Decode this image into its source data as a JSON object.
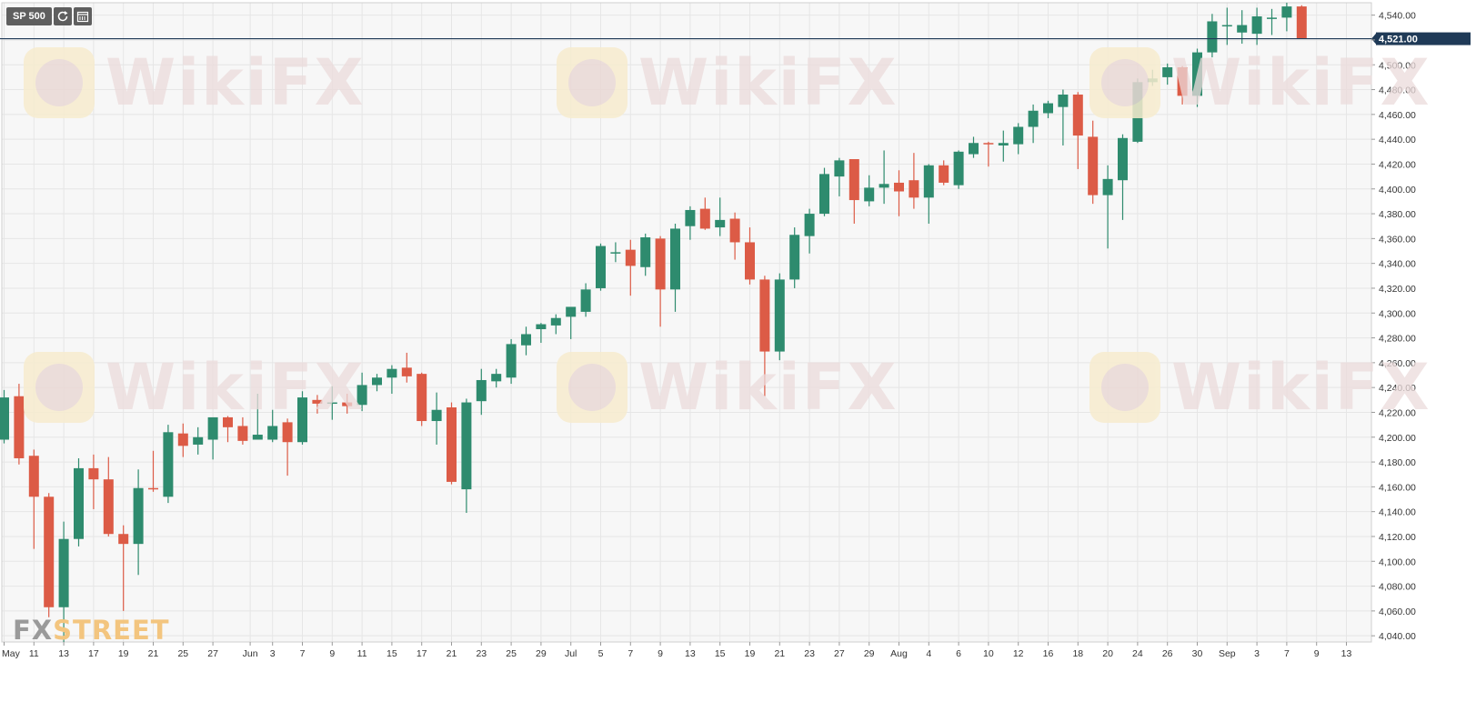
{
  "toolbar": {
    "symbol": "SP 500",
    "icons": [
      "refresh-icon",
      "calendar-icon"
    ]
  },
  "brand": {
    "part1": "FX",
    "part2": "STREET"
  },
  "watermark": "WikiFX",
  "colors": {
    "up": "#2e8b6e",
    "down": "#dc5b46",
    "price_line": "#1f3a57",
    "price_label_bg": "#1f3a57",
    "grid": "#e6e6e6",
    "background": "#f7f7f7"
  },
  "chart_data": {
    "type": "candlestick",
    "current_price_label": "4,521.00",
    "current_price": 4521,
    "ylim": [
      4035,
      4550
    ],
    "y_ticks": [
      4040,
      4060,
      4080,
      4100,
      4120,
      4140,
      4160,
      4180,
      4200,
      4220,
      4240,
      4260,
      4280,
      4300,
      4320,
      4340,
      4360,
      4380,
      4400,
      4420,
      4440,
      4460,
      4480,
      4500,
      4520,
      4540
    ],
    "y_tick_labels": [
      "4,040.00",
      "4,060.00",
      "4,080.00",
      "4,100.00",
      "4,120.00",
      "4,140.00",
      "4,160.00",
      "4,180.00",
      "4,200.00",
      "4,220.00",
      "4,240.00",
      "4,260.00",
      "4,280.00",
      "4,300.00",
      "4,320.00",
      "4,340.00",
      "4,360.00",
      "4,380.00",
      "4,400.00",
      "4,420.00",
      "4,440.00",
      "4,460.00",
      "4,480.00",
      "4,500.00",
      "4,520.00",
      "4,540.00"
    ],
    "x_tick_labels": [
      "May",
      "11",
      "13",
      "17",
      "19",
      "21",
      "25",
      "27",
      "Jun",
      "3",
      "7",
      "9",
      "11",
      "15",
      "17",
      "21",
      "23",
      "25",
      "29",
      "Jul",
      "5",
      "7",
      "9",
      "13",
      "15",
      "19",
      "21",
      "23",
      "27",
      "29",
      "Aug",
      "4",
      "6",
      "10",
      "12",
      "16",
      "18",
      "20",
      "24",
      "26",
      "30",
      "Sep",
      "3",
      "7",
      "9",
      "13"
    ],
    "x_tick_index": [
      0,
      2,
      4,
      6,
      8,
      10,
      12,
      14,
      16.5,
      18,
      20,
      22,
      24,
      26,
      28,
      30,
      32,
      34,
      36,
      38,
      40,
      42,
      44,
      46,
      48,
      50,
      52,
      54,
      56,
      58,
      60,
      62,
      64,
      66,
      68,
      70,
      72,
      74,
      76,
      78,
      80,
      82,
      84,
      86,
      88,
      90
    ],
    "candles": [
      {
        "o": 4198,
        "h": 4238,
        "l": 4195,
        "c": 4232
      },
      {
        "o": 4233,
        "h": 4243,
        "l": 4178,
        "c": 4183
      },
      {
        "o": 4185,
        "h": 4190,
        "l": 4110,
        "c": 4152
      },
      {
        "o": 4152,
        "h": 4155,
        "l": 4055,
        "c": 4063
      },
      {
        "o": 4063,
        "h": 4132,
        "l": 4035,
        "c": 4118
      },
      {
        "o": 4118,
        "h": 4183,
        "l": 4112,
        "c": 4175
      },
      {
        "o": 4175,
        "h": 4186,
        "l": 4142,
        "c": 4166
      },
      {
        "o": 4166,
        "h": 4184,
        "l": 4120,
        "c": 4122
      },
      {
        "o": 4122,
        "h": 4129,
        "l": 4060,
        "c": 4114
      },
      {
        "o": 4114,
        "h": 4174,
        "l": 4089,
        "c": 4159
      },
      {
        "o": 4159,
        "h": 4189,
        "l": 4156,
        "c": 4158
      },
      {
        "o": 4152,
        "h": 4210,
        "l": 4147,
        "c": 4204
      },
      {
        "o": 4203,
        "h": 4211,
        "l": 4184,
        "c": 4193
      },
      {
        "o": 4194,
        "h": 4208,
        "l": 4186,
        "c": 4200
      },
      {
        "o": 4198,
        "h": 4215,
        "l": 4182,
        "c": 4216
      },
      {
        "o": 4216,
        "h": 4217,
        "l": 4196,
        "c": 4208
      },
      {
        "o": 4209,
        "h": 4216,
        "l": 4194,
        "c": 4197
      },
      {
        "o": 4198,
        "h": 4235,
        "l": 4198,
        "c": 4202
      },
      {
        "o": 4198,
        "h": 4222,
        "l": 4196,
        "c": 4209
      },
      {
        "o": 4212,
        "h": 4215,
        "l": 4169,
        "c": 4196
      },
      {
        "o": 4196,
        "h": 4237,
        "l": 4194,
        "c": 4232
      },
      {
        "o": 4230,
        "h": 4234,
        "l": 4219,
        "c": 4227
      },
      {
        "o": 4227,
        "h": 4241,
        "l": 4214,
        "c": 4228
      },
      {
        "o": 4228,
        "h": 4235,
        "l": 4219,
        "c": 4225
      },
      {
        "o": 4226,
        "h": 4252,
        "l": 4221,
        "c": 4242
      },
      {
        "o": 4242,
        "h": 4251,
        "l": 4237,
        "c": 4248
      },
      {
        "o": 4248,
        "h": 4258,
        "l": 4235,
        "c": 4255
      },
      {
        "o": 4256,
        "h": 4268,
        "l": 4244,
        "c": 4249
      },
      {
        "o": 4251,
        "h": 4252,
        "l": 4209,
        "c": 4213
      },
      {
        "o": 4213,
        "h": 4236,
        "l": 4194,
        "c": 4222
      },
      {
        "o": 4224,
        "h": 4228,
        "l": 4162,
        "c": 4164
      },
      {
        "o": 4158,
        "h": 4231,
        "l": 4139,
        "c": 4228
      },
      {
        "o": 4229,
        "h": 4255,
        "l": 4218,
        "c": 4246
      },
      {
        "o": 4245,
        "h": 4255,
        "l": 4240,
        "c": 4251
      },
      {
        "o": 4248,
        "h": 4279,
        "l": 4243,
        "c": 4275
      },
      {
        "o": 4274,
        "h": 4289,
        "l": 4266,
        "c": 4283
      },
      {
        "o": 4287,
        "h": 4292,
        "l": 4276,
        "c": 4291
      },
      {
        "o": 4290,
        "h": 4299,
        "l": 4283,
        "c": 4296
      },
      {
        "o": 4297,
        "h": 4304,
        "l": 4279,
        "c": 4305
      },
      {
        "o": 4301,
        "h": 4324,
        "l": 4297,
        "c": 4319
      },
      {
        "o": 4320,
        "h": 4356,
        "l": 4318,
        "c": 4354
      },
      {
        "o": 4349,
        "h": 4357,
        "l": 4341,
        "c": 4349
      },
      {
        "o": 4351,
        "h": 4359,
        "l": 4314,
        "c": 4338
      },
      {
        "o": 4337,
        "h": 4364,
        "l": 4330,
        "c": 4361
      },
      {
        "o": 4360,
        "h": 4362,
        "l": 4289,
        "c": 4319
      },
      {
        "o": 4319,
        "h": 4372,
        "l": 4301,
        "c": 4368
      },
      {
        "o": 4370,
        "h": 4386,
        "l": 4359,
        "c": 4383
      },
      {
        "o": 4384,
        "h": 4393,
        "l": 4367,
        "c": 4368
      },
      {
        "o": 4369,
        "h": 4393,
        "l": 4362,
        "c": 4375
      },
      {
        "o": 4376,
        "h": 4381,
        "l": 4343,
        "c": 4357
      },
      {
        "o": 4357,
        "h": 4369,
        "l": 4323,
        "c": 4327
      },
      {
        "o": 4327,
        "h": 4330,
        "l": 4233,
        "c": 4269
      },
      {
        "o": 4269,
        "h": 4332,
        "l": 4262,
        "c": 4327
      },
      {
        "o": 4327,
        "h": 4369,
        "l": 4320,
        "c": 4363
      },
      {
        "o": 4362,
        "h": 4384,
        "l": 4348,
        "c": 4380
      },
      {
        "o": 4380,
        "h": 4417,
        "l": 4378,
        "c": 4412
      },
      {
        "o": 4410,
        "h": 4425,
        "l": 4394,
        "c": 4423
      },
      {
        "o": 4424,
        "h": 4424,
        "l": 4372,
        "c": 4391
      },
      {
        "o": 4390,
        "h": 4411,
        "l": 4386,
        "c": 4401
      },
      {
        "o": 4401,
        "h": 4431,
        "l": 4388,
        "c": 4404
      },
      {
        "o": 4405,
        "h": 4415,
        "l": 4378,
        "c": 4398
      },
      {
        "o": 4407,
        "h": 4429,
        "l": 4384,
        "c": 4393
      },
      {
        "o": 4393,
        "h": 4420,
        "l": 4372,
        "c": 4419
      },
      {
        "o": 4419,
        "h": 4423,
        "l": 4403,
        "c": 4405
      },
      {
        "o": 4403,
        "h": 4431,
        "l": 4400,
        "c": 4430
      },
      {
        "o": 4428,
        "h": 4442,
        "l": 4425,
        "c": 4437
      },
      {
        "o": 4437,
        "h": 4438,
        "l": 4418,
        "c": 4436
      },
      {
        "o": 4435,
        "h": 4447,
        "l": 4422,
        "c": 4437
      },
      {
        "o": 4436,
        "h": 4453,
        "l": 4428,
        "c": 4450
      },
      {
        "o": 4450,
        "h": 4468,
        "l": 4437,
        "c": 4463
      },
      {
        "o": 4461,
        "h": 4471,
        "l": 4457,
        "c": 4469
      },
      {
        "o": 4466,
        "h": 4480,
        "l": 4435,
        "c": 4476
      },
      {
        "o": 4476,
        "h": 4478,
        "l": 4416,
        "c": 4443
      },
      {
        "o": 4442,
        "h": 4455,
        "l": 4388,
        "c": 4395
      },
      {
        "o": 4395,
        "h": 4419,
        "l": 4352,
        "c": 4408
      },
      {
        "o": 4407,
        "h": 4444,
        "l": 4375,
        "c": 4441
      },
      {
        "o": 4438,
        "h": 4489,
        "l": 4437,
        "c": 4486
      },
      {
        "o": 4486,
        "h": 4496,
        "l": 4483,
        "c": 4489
      },
      {
        "o": 4490,
        "h": 4501,
        "l": 4484,
        "c": 4498
      },
      {
        "o": 4498,
        "h": 4499,
        "l": 4468,
        "c": 4475
      },
      {
        "o": 4475,
        "h": 4513,
        "l": 4466,
        "c": 4510
      },
      {
        "o": 4510,
        "h": 4541,
        "l": 4506,
        "c": 4535
      },
      {
        "o": 4531,
        "h": 4546,
        "l": 4516,
        "c": 4532
      },
      {
        "o": 4526,
        "h": 4544,
        "l": 4517,
        "c": 4532
      },
      {
        "o": 4525,
        "h": 4546,
        "l": 4516,
        "c": 4539
      },
      {
        "o": 4538,
        "h": 4545,
        "l": 4524,
        "c": 4538
      },
      {
        "o": 4538,
        "h": 4550,
        "l": 4527,
        "c": 4547
      },
      {
        "o": 4547,
        "h": 4548,
        "l": 4521,
        "c": 4521
      }
    ]
  }
}
